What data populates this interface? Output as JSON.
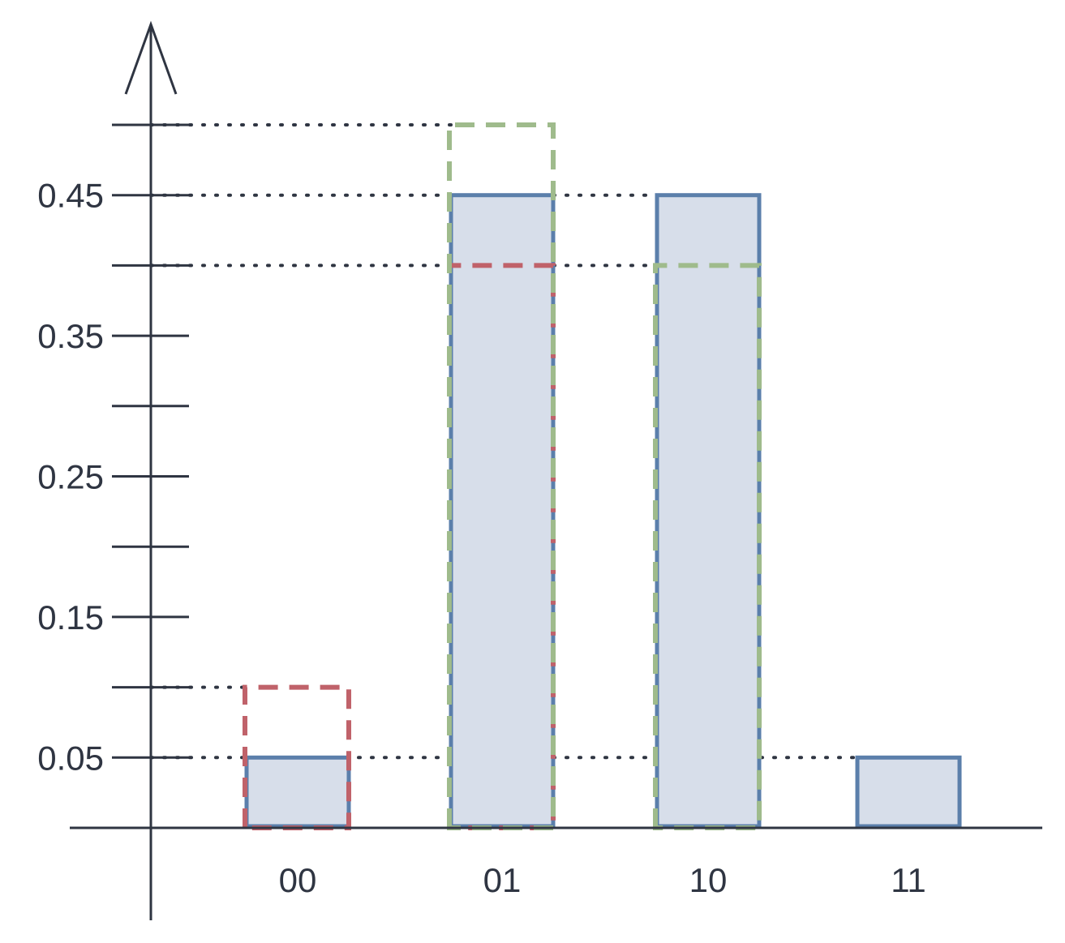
{
  "chart_data": {
    "type": "bar",
    "categories": [
      "00",
      "01",
      "10",
      "11"
    ],
    "series": [
      {
        "values": [
          0.05,
          0.45,
          0.45,
          0.05
        ]
      },
      {
        "values": [
          0.1,
          0.4,
          null,
          null
        ]
      },
      {
        "values": [
          null,
          0.5,
          0.4,
          null
        ]
      }
    ],
    "y_ticks_labeled": [
      0.05,
      0.15,
      0.25,
      0.35,
      0.45
    ],
    "y_ticks_unlabeled": [
      0.1,
      0.2,
      0.3,
      0.4,
      0.5
    ],
    "reference_lines": [
      0.05,
      0.1,
      0.4,
      0.45,
      0.5
    ],
    "ylim": [
      0,
      0.5
    ],
    "grid": false,
    "legend": "none",
    "colors": {
      "axis": "#2f3542",
      "bar_fill": "#d7deea",
      "bar_stroke": "#5b7fab",
      "red_outline": "#c0626a",
      "green_outline": "#9fbb8c",
      "reference": "#2f3542"
    }
  }
}
